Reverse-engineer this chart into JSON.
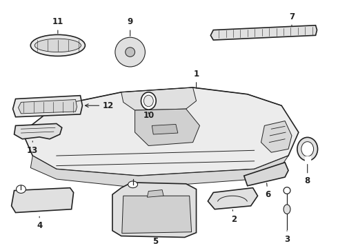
{
  "background_color": "#ffffff",
  "line_color": "#222222",
  "fill_light": "#f0f0f0",
  "fill_mid": "#e0e0e0",
  "fill_dark": "#cccccc",
  "figsize": [
    4.9,
    3.6
  ],
  "dpi": 100,
  "label_fontsize": 8.5
}
